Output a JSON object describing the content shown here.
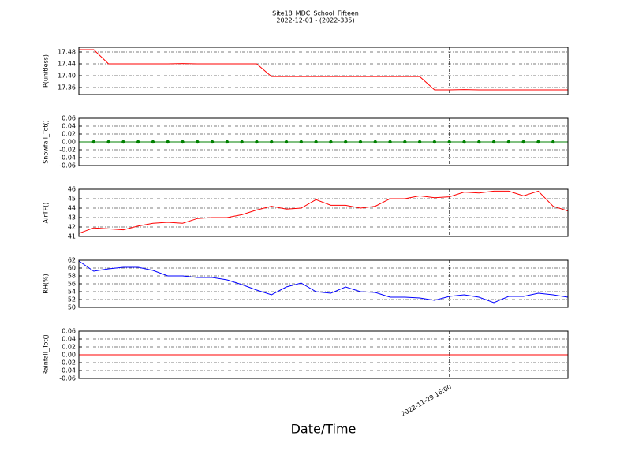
{
  "title": "Site18_MDC_School_Fifteen",
  "subtitle": "2022-12-01 - (2022-335)",
  "x_label": "Date/Time",
  "categories": [
    null,
    null,
    null,
    null,
    null,
    null,
    null,
    null,
    null,
    null,
    null,
    null,
    null,
    null,
    null,
    null,
    null,
    null,
    null,
    null,
    null,
    null,
    null,
    null,
    null,
    "2022-11-29 16:00",
    null,
    null,
    null,
    null,
    null,
    null,
    null,
    null
  ],
  "chart_data": [
    {
      "type": "line",
      "y_label": "P(unitless)",
      "color": "#ff0000",
      "marker": false,
      "grid": true,
      "ylim": [
        17.336,
        17.496
      ],
      "yticks": [
        17.36,
        {
          "value": 17.4,
          "label": "17.40"
        },
        17.44,
        17.48
      ],
      "values": [
        17.488,
        17.488,
        17.44,
        17.44,
        17.44,
        17.44,
        17.44,
        17.441,
        17.44,
        17.44,
        17.44,
        17.44,
        17.44,
        17.397,
        17.397,
        17.397,
        17.397,
        17.397,
        17.397,
        17.397,
        17.397,
        17.397,
        17.397,
        17.397,
        17.352,
        17.352,
        17.353,
        17.352,
        17.352,
        17.352,
        17.352,
        17.352,
        17.352,
        17.352
      ]
    },
    {
      "type": "line",
      "y_label": "Snowfall_Tot()",
      "color": "#008000",
      "marker": true,
      "grid": true,
      "ylim": [
        -0.06,
        0.06
      ],
      "yticks": [
        -0.06,
        -0.04,
        -0.02,
        {
          "value": 0,
          "label": "0.00"
        },
        0.02,
        0.04,
        0.06
      ],
      "values": [
        0,
        0,
        0,
        0,
        0,
        0,
        0,
        0,
        0,
        0,
        0,
        0,
        0,
        0,
        0,
        0,
        0,
        0,
        0,
        0,
        0,
        0,
        0,
        0,
        0,
        0,
        0,
        0,
        0,
        0,
        0,
        0,
        0,
        0
      ]
    },
    {
      "type": "line",
      "y_label": "AirTF()",
      "color": "#ff0000",
      "marker": false,
      "grid": true,
      "ylim": [
        41,
        46
      ],
      "yticks": [
        41,
        42,
        43,
        44,
        45,
        46
      ],
      "values": [
        41.33,
        41.9,
        41.8,
        41.7,
        42.1,
        42.4,
        42.5,
        42.4,
        42.9,
        43.0,
        43.0,
        43.3,
        43.8,
        44.2,
        43.9,
        44.0,
        44.9,
        44.3,
        44.3,
        44.0,
        44.2,
        45.0,
        45.0,
        45.3,
        45.1,
        45.2,
        45.7,
        45.6,
        45.8,
        45.8,
        45.3,
        45.8,
        44.2,
        43.7
      ]
    },
    {
      "type": "line",
      "y_label": "RH(%)",
      "color": "#0000ff",
      "marker": false,
      "grid": true,
      "ylim": [
        50,
        62
      ],
      "yticks": [
        50,
        52,
        54,
        56,
        58,
        60,
        62
      ],
      "values": [
        61.8,
        59.2,
        59.8,
        60.2,
        60.2,
        59.4,
        58.0,
        58.0,
        57.6,
        57.6,
        57.0,
        55.8,
        54.4,
        53.2,
        55.2,
        56.2,
        54.0,
        53.6,
        55.2,
        54.0,
        53.8,
        52.6,
        52.6,
        52.4,
        51.8,
        52.8,
        53.2,
        52.6,
        51.2,
        52.8,
        52.8,
        53.6,
        53.2,
        52.6
      ]
    },
    {
      "type": "line",
      "y_label": "Rainfall_Tot()",
      "color": "#ff0000",
      "marker": false,
      "grid": true,
      "ylim": [
        -0.06,
        0.06
      ],
      "yticks": [
        -0.06,
        -0.04,
        -0.02,
        {
          "value": 0,
          "label": "0.00"
        },
        0.02,
        0.04,
        0.06
      ],
      "values": [
        0,
        0,
        0,
        0,
        0,
        0,
        0,
        0,
        0,
        0,
        0,
        0,
        0,
        0,
        0,
        0,
        0,
        0,
        0,
        0,
        0,
        0,
        0,
        0,
        0,
        0,
        0,
        0,
        0,
        0,
        0,
        0,
        0,
        0
      ]
    }
  ]
}
